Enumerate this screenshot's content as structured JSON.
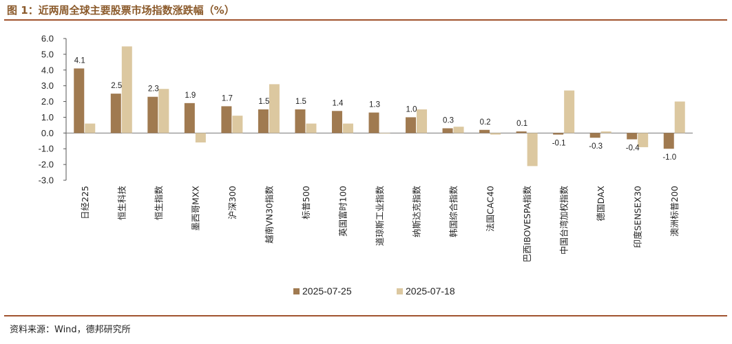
{
  "title": "图 1：近两周全球主要股票市场指数涨跌幅（%）",
  "source": "资料来源：Wind，德邦研究所",
  "colors": {
    "title": "#8B5A2B",
    "rule": "#A0522D",
    "series1": "#A07A50",
    "series2": "#DCC8A0"
  },
  "chart_data": {
    "type": "bar",
    "categories": [
      "日经225",
      "恒生科技",
      "恒生指数",
      "墨西哥MXX",
      "沪深300",
      "越南VN30指数",
      "标普500",
      "英国富时100",
      "道琼斯工业指数",
      "纳斯达克指数",
      "韩国综合指数",
      "法国CAC40",
      "巴西IBOVESPA指数",
      "中国台湾加权指数",
      "德国DAX",
      "印度SENSEX30",
      "澳洲标普200"
    ],
    "series": [
      {
        "name": "2025-07-25",
        "values": [
          4.1,
          2.5,
          2.3,
          1.9,
          1.7,
          1.5,
          1.5,
          1.4,
          1.3,
          1.0,
          0.3,
          0.2,
          0.1,
          -0.1,
          -0.3,
          -0.4,
          -1.0
        ],
        "data_labels": [
          "4.1",
          "2.5",
          "2.3",
          "1.9",
          "1.7",
          "1.5",
          "1.5",
          "1.4",
          "1.3",
          "1.0",
          "0.3",
          "0.2",
          "0.1",
          "-0.1",
          "-0.3",
          "-0.4",
          "-1.0"
        ]
      },
      {
        "name": "2025-07-18",
        "values": [
          0.6,
          5.5,
          2.8,
          -0.6,
          1.1,
          3.1,
          0.6,
          0.6,
          0.0,
          1.5,
          0.4,
          -0.1,
          -2.1,
          2.7,
          0.1,
          -0.9,
          2.0
        ]
      }
    ],
    "ylim": [
      -3.0,
      6.0
    ],
    "yticks": [
      "6.0",
      "5.0",
      "4.0",
      "3.0",
      "2.0",
      "1.0",
      "0.0",
      "-1.0",
      "-2.0",
      "-3.0"
    ],
    "legend": "bottom"
  }
}
